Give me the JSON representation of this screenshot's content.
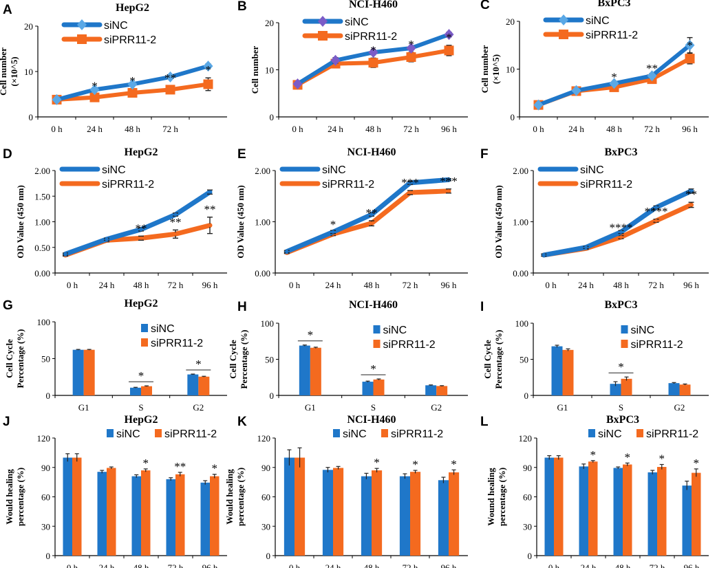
{
  "figure": {
    "title": "Proliferation, cell cycle and wound healing in HepG2, NCI-H460 and BxPC3"
  },
  "colors": {
    "siNC": "#1f77c9",
    "siPRR11": "#f46a1f",
    "siNC_marker_A": "#5aa8e6",
    "siNC_marker_B": "#7b5cc7",
    "axis": "#000000"
  },
  "chart_data": [
    {
      "label": "A",
      "title": "HepG2",
      "type": "line",
      "style": "marker",
      "ylabel": "Cell number",
      "ylabel2": "(×10^5)",
      "ylim": [
        0,
        20
      ],
      "yticks": [
        "0",
        "10",
        "20"
      ],
      "ytick_values": [
        0,
        10,
        20
      ],
      "categories": [
        "0 h",
        "24 h",
        "48 h",
        "72 h",
        ""
      ],
      "series": [
        {
          "name": "siNC",
          "values": [
            3.8,
            6.0,
            7.2,
            8.8,
            11.2
          ],
          "errors": [
            0.3,
            0.4,
            0.4,
            0.4,
            0.5
          ]
        },
        {
          "name": "siPRR11-2",
          "values": [
            3.8,
            4.3,
            5.3,
            6.0,
            7.2
          ],
          "errors": [
            0.5,
            0.8,
            0.9,
            0.8,
            1.4
          ]
        }
      ],
      "annotations": [
        "",
        "*",
        "*",
        "**",
        "*"
      ],
      "legend_pos": "top-left"
    },
    {
      "label": "B",
      "title": "NCI-H460",
      "type": "line",
      "style": "marker",
      "ylabel": "Cell number",
      "ylabel2": "",
      "ylim": [
        0,
        20
      ],
      "yticks": [
        "0",
        "10",
        "20"
      ],
      "ytick_values": [
        0,
        10,
        20
      ],
      "categories": [
        "0 h",
        "24 h",
        "48 h",
        "72 h",
        "96 h"
      ],
      "series": [
        {
          "name": "siNC",
          "values": [
            7.0,
            12.0,
            13.7,
            14.6,
            17.5
          ],
          "errors": [
            0.3,
            0.6,
            0.5,
            0.4,
            0.5
          ]
        },
        {
          "name": "siPRR11-2",
          "values": [
            6.8,
            11.3,
            11.5,
            12.7,
            14.1
          ],
          "errors": [
            0.5,
            0.9,
            1.0,
            1.0,
            1.1
          ]
        }
      ],
      "annotations": [
        "",
        "",
        "*",
        "*",
        "*"
      ],
      "legend_pos": "top-left"
    },
    {
      "label": "C",
      "title": "BxPC3",
      "type": "line",
      "style": "marker",
      "ylabel": "Cell number",
      "ylabel2": "(×10^5)",
      "ylim": [
        0,
        20
      ],
      "yticks": [
        "0",
        "10",
        "20"
      ],
      "ytick_values": [
        0,
        10,
        20
      ],
      "categories": [
        "0 h",
        "24 h",
        "48 h",
        "72 h",
        "96 h"
      ],
      "series": [
        {
          "name": "siNC",
          "values": [
            2.5,
            5.5,
            7.0,
            8.6,
            15.0
          ],
          "errors": [
            0.3,
            0.4,
            0.4,
            0.5,
            1.6
          ]
        },
        {
          "name": "siPRR11-2",
          "values": [
            2.5,
            5.4,
            6.2,
            7.9,
            12.2
          ],
          "errors": [
            0.4,
            0.5,
            0.5,
            0.6,
            1.1
          ]
        }
      ],
      "annotations": [
        "",
        "",
        "*",
        "**",
        "*"
      ],
      "legend_pos": "top-left"
    },
    {
      "label": "D",
      "title": "HepG2",
      "type": "line",
      "style": "thick",
      "ylabel": "OD Value (450 nm)",
      "ylabel2": "",
      "ylim": [
        0,
        2.0
      ],
      "yticks": [
        "0.00",
        "0.50",
        "1.00",
        "1.50",
        "2.00"
      ],
      "ytick_values": [
        0,
        0.5,
        1.0,
        1.5,
        2.0
      ],
      "categories": [
        "0 h",
        "24 h",
        "48 h",
        "72 h",
        "96 h"
      ],
      "series": [
        {
          "name": "siNC",
          "values": [
            0.37,
            0.66,
            0.85,
            1.14,
            1.58
          ],
          "errors": [
            0.02,
            0.02,
            0.03,
            0.03,
            0.04
          ]
        },
        {
          "name": "siPRR11-2",
          "values": [
            0.35,
            0.64,
            0.68,
            0.76,
            0.93
          ],
          "errors": [
            0.02,
            0.03,
            0.04,
            0.08,
            0.16
          ]
        }
      ],
      "annotations": [
        "",
        "",
        "**",
        "**",
        "**"
      ],
      "legend_pos": "top-left"
    },
    {
      "label": "E",
      "title": "NCI-H460",
      "type": "line",
      "style": "thick",
      "ylabel": "OD Value (450 nm)",
      "ylabel2": "",
      "ylim": [
        0,
        2.0
      ],
      "yticks": [
        "0.00",
        "1.00",
        "2.00"
      ],
      "ytick_values": [
        0,
        1.0,
        2.0
      ],
      "categories": [
        "0 h",
        "24 h",
        "48 h",
        "72 h",
        "96 h"
      ],
      "series": [
        {
          "name": "siNC",
          "values": [
            0.42,
            0.8,
            1.14,
            1.76,
            1.82
          ],
          "errors": [
            0.02,
            0.03,
            0.03,
            0.03,
            0.02
          ]
        },
        {
          "name": "siPRR11-2",
          "values": [
            0.4,
            0.76,
            0.97,
            1.57,
            1.6
          ],
          "errors": [
            0.02,
            0.03,
            0.05,
            0.04,
            0.04
          ]
        }
      ],
      "annotations": [
        "",
        "*",
        "**",
        "***",
        "***"
      ],
      "legend_pos": "top-left"
    },
    {
      "label": "F",
      "title": "BxPC3",
      "type": "line",
      "style": "thick",
      "ylabel": "OD Value (450 nm)",
      "ylabel2": "",
      "ylim": [
        0,
        2.0
      ],
      "yticks": [
        "0.00",
        "1.00",
        "2.00"
      ],
      "ytick_values": [
        0,
        1.0,
        2.0
      ],
      "categories": [
        "0 h",
        "24 h",
        "48 h",
        "72 h",
        "96 h"
      ],
      "series": [
        {
          "name": "siNC",
          "values": [
            0.35,
            0.5,
            0.8,
            1.28,
            1.6
          ],
          "errors": [
            0.02,
            0.02,
            0.03,
            0.03,
            0.04
          ]
        },
        {
          "name": "siPRR11-2",
          "values": [
            0.35,
            0.48,
            0.7,
            1.02,
            1.33
          ],
          "errors": [
            0.02,
            0.02,
            0.03,
            0.03,
            0.05
          ]
        }
      ],
      "annotations": [
        "",
        "",
        "****",
        "****",
        "**"
      ],
      "legend_pos": "top-left"
    },
    {
      "label": "G",
      "title": "HepG2",
      "type": "bar",
      "ylabel": "Cell Cycle",
      "ylabel2": "Percentage (%)",
      "ylim": [
        0,
        100
      ],
      "yticks": [
        "0",
        "50",
        "100"
      ],
      "ytick_values": [
        0,
        50,
        100
      ],
      "categories": [
        "G1",
        "S",
        "G2"
      ],
      "series": [
        {
          "name": "siNC",
          "values": [
            62,
            10.5,
            28.5
          ],
          "errors": [
            0.5,
            0.5,
            0.5
          ]
        },
        {
          "name": "siPRR11-2",
          "values": [
            62,
            12.5,
            25.5
          ],
          "errors": [
            0.5,
            0.5,
            0.5
          ]
        }
      ],
      "annotations": [
        "",
        "*",
        "*"
      ],
      "legend_pos": "top-right"
    },
    {
      "label": "H",
      "title": "NCI-H460",
      "type": "bar",
      "ylabel": "Cell Cycle",
      "ylabel2": "Percentage (%)",
      "ylim": [
        0,
        100
      ],
      "yticks": [
        "0",
        "50",
        "100"
      ],
      "ytick_values": [
        0,
        50,
        100
      ],
      "categories": [
        "G1",
        "S",
        "G2"
      ],
      "series": [
        {
          "name": "siNC",
          "values": [
            69,
            19,
            14
          ],
          "errors": [
            0.8,
            0.8,
            0.5
          ]
        },
        {
          "name": "siPRR11-2",
          "values": [
            66,
            22,
            13
          ],
          "errors": [
            0.8,
            0.8,
            0.5
          ]
        }
      ],
      "annotations": [
        "*",
        "*",
        ""
      ],
      "legend_pos": "top-right"
    },
    {
      "label": "I",
      "title": "BxPC3",
      "type": "bar",
      "ylabel": "Cell Cycle",
      "ylabel2": "Percentage (%)",
      "ylim": [
        0,
        100
      ],
      "yticks": [
        "0",
        "50",
        "100"
      ],
      "ytick_values": [
        0,
        50,
        100
      ],
      "categories": [
        "G1",
        "S",
        "G2"
      ],
      "series": [
        {
          "name": "siNC",
          "values": [
            68,
            16,
            17
          ],
          "errors": [
            1.5,
            3,
            0.8
          ]
        },
        {
          "name": "siPRR11-2",
          "values": [
            63,
            23,
            15
          ],
          "errors": [
            1.5,
            2.5,
            0.8
          ]
        }
      ],
      "annotations": [
        "",
        "*",
        ""
      ],
      "legend_pos": "top-right"
    },
    {
      "label": "J",
      "title": "HepG2",
      "type": "bar",
      "ylabel": "Would healing",
      "ylabel2": "percentage (%)",
      "ylim": [
        0,
        120
      ],
      "yticks": [
        "0",
        "30",
        "60",
        "90",
        "120"
      ],
      "ytick_values": [
        0,
        30,
        60,
        90,
        120
      ],
      "categories": [
        "0 h",
        "24 h",
        "48 h",
        "72 h",
        "96 h"
      ],
      "series": [
        {
          "name": "siNC",
          "values": [
            100,
            85.5,
            81,
            78,
            74.5
          ],
          "errors": [
            4,
            1.5,
            1.5,
            1.5,
            2
          ]
        },
        {
          "name": "siPRR11-2",
          "values": [
            100,
            89.5,
            87,
            83,
            81
          ],
          "errors": [
            4,
            1,
            1.5,
            2,
            2
          ]
        }
      ],
      "annotations": [
        "",
        "",
        "*",
        "**",
        "*"
      ],
      "legend_pos": "top-center"
    },
    {
      "label": "K",
      "title": "NCI-H460",
      "type": "bar",
      "ylabel": "Would healing",
      "ylabel2": "percentage (%)",
      "ylim": [
        0,
        120
      ],
      "yticks": [
        "0",
        "30",
        "60",
        "90",
        "120"
      ],
      "ytick_values": [
        0,
        30,
        60,
        90,
        120
      ],
      "categories": [
        "0 h",
        "24 h",
        "48 h",
        "72 h",
        "96 h"
      ],
      "series": [
        {
          "name": "siNC",
          "values": [
            100,
            87.5,
            81,
            81,
            77
          ],
          "errors": [
            8,
            2.5,
            3,
            2.5,
            3
          ]
        },
        {
          "name": "siPRR11-2",
          "values": [
            100,
            89.5,
            87,
            85.5,
            85
          ],
          "errors": [
            10,
            1.5,
            2,
            1.5,
            2.5
          ]
        }
      ],
      "annotations": [
        "",
        "",
        "*",
        "*",
        "*"
      ],
      "legend_pos": "top-center"
    },
    {
      "label": "L",
      "title": "BxPC3",
      "type": "bar",
      "ylabel": "Wound healing",
      "ylabel2": "percentage (%)",
      "ylim": [
        0,
        120
      ],
      "yticks": [
        "0",
        "30",
        "60",
        "90",
        "120"
      ],
      "ytick_values": [
        0,
        30,
        60,
        90,
        120
      ],
      "categories": [
        "0 h",
        "24 h",
        "48 h",
        "72 h",
        "96 h"
      ],
      "series": [
        {
          "name": "siNC",
          "values": [
            100,
            91,
            89.5,
            85,
            71.5
          ],
          "errors": [
            2,
            2.5,
            1,
            2,
            4.5
          ]
        },
        {
          "name": "siPRR11-2",
          "values": [
            100,
            96,
            93,
            90.5,
            84.5
          ],
          "errors": [
            2,
            1,
            1.5,
            2.5,
            4
          ]
        }
      ],
      "annotations": [
        "",
        "*",
        "*",
        "*",
        "*"
      ],
      "legend_pos": "top-center"
    }
  ]
}
